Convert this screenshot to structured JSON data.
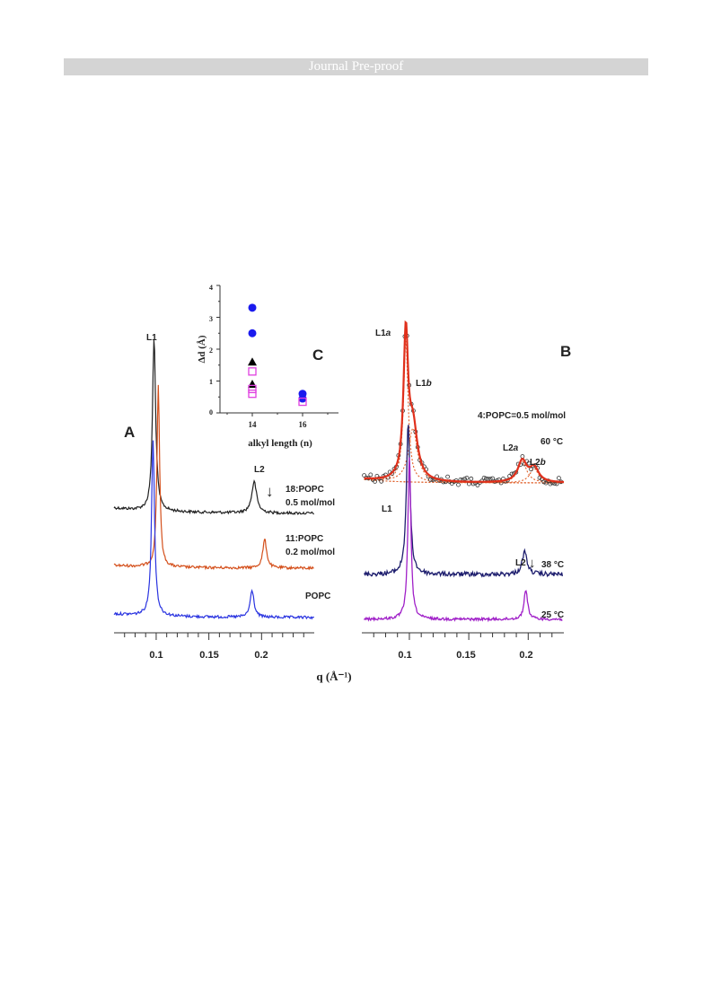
{
  "page": {
    "banner_text": "Journal Pre-proof"
  },
  "chart_data": [
    {
      "panel": "A",
      "type": "line",
      "xlabel": "q (Å⁻¹)",
      "xlim": [
        0.06,
        0.25
      ],
      "xticks": [
        0.1,
        0.15,
        0.2
      ],
      "series": [
        {
          "name": "18:POPC 0.5 mol/mol",
          "color": "#222222",
          "peaks": [
            {
              "label": "L1",
              "q": 0.098
            },
            {
              "label": "L2",
              "q": 0.193
            }
          ],
          "arrow_label": "↓"
        },
        {
          "name": "11:POPC 0.2 mol/mol",
          "color": "#d4501c",
          "peaks": [
            {
              "q": 0.102
            },
            {
              "q": 0.203
            }
          ]
        },
        {
          "name": "POPC",
          "color": "#2a34e0",
          "peaks": [
            {
              "q": 0.097
            },
            {
              "q": 0.191
            }
          ]
        }
      ]
    },
    {
      "panel": "B",
      "type": "line",
      "xlim": [
        0.06,
        0.23
      ],
      "xticks": [
        0.1,
        0.15,
        0.2
      ],
      "series": [
        {
          "name": "4:POPC=0.5 mol/mol",
          "temperature": "60 °C",
          "color": "#e0301c",
          "peaks": [
            {
              "label": "L1a",
              "q": 0.097
            },
            {
              "label": "L1b",
              "q": 0.103
            },
            {
              "label": "L2a",
              "q": 0.195
            },
            {
              "label": "L2b",
              "q": 0.205
            }
          ]
        },
        {
          "temperature": "38 °C",
          "color": "#1e1e6e",
          "peaks": [
            {
              "label": "L1",
              "q": 0.099
            },
            {
              "label": "L2",
              "q": 0.197
            }
          ],
          "arrow_label": "↓"
        },
        {
          "temperature": "25 °C",
          "color": "#a020c8",
          "peaks": [
            {
              "q": 0.1
            },
            {
              "q": 0.198
            }
          ]
        }
      ]
    },
    {
      "panel": "C",
      "type": "scatter",
      "xlabel": "alkyl length (n)",
      "ylabel": "Δd (Å)",
      "ylim": [
        0,
        4
      ],
      "xticks": [
        14,
        16
      ],
      "yticks": [
        0,
        1,
        2,
        3,
        4
      ],
      "series": [
        {
          "marker": "circle",
          "color": "#1a1aee",
          "points": [
            [
              14,
              3.3
            ],
            [
              14,
              2.5
            ],
            [
              16,
              0.6
            ],
            [
              16,
              0.45
            ]
          ]
        },
        {
          "marker": "triangle",
          "color": "#000000",
          "points": [
            [
              14,
              1.6
            ],
            [
              14,
              0.9
            ]
          ]
        },
        {
          "marker": "open-square",
          "color": "#e040e0",
          "points": [
            [
              14,
              1.3
            ],
            [
              14,
              0.75
            ],
            [
              14,
              0.6
            ],
            [
              16,
              0.35
            ]
          ]
        }
      ]
    }
  ],
  "labels": {
    "panel_a": "A",
    "panel_b": "B",
    "panel_c": "C",
    "a_l1": "L1",
    "a_l2": "L2",
    "a_arrow": "↓",
    "a_s1_line1": "18:POPC",
    "a_s1_line2": "0.5 mol/mol",
    "a_s2_line1": "11:POPC",
    "a_s2_line2": "0.2 mol/mol",
    "a_s3": "POPC",
    "b_l1a": "L1",
    "b_l1a_sub": "a",
    "b_l1b": "L1",
    "b_l1b_sub": "b",
    "b_l2a": "L2",
    "b_l2a_sub": "a",
    "b_l2b": "L2",
    "b_l2b_sub": "b",
    "b_series": "4:POPC=0.5 mol/mol",
    "b_t60": "60 °C",
    "b_t38": "38 °C",
    "b_t25": "25 °C",
    "b_l1": "L1",
    "b_l2": "L2",
    "b_arrow": "↓",
    "x_tick_1": "0.1",
    "x_tick_2": "0.15",
    "x_tick_3": "0.2",
    "xlabel": "q (Å⁻¹)",
    "c_ylabel": "Δd (Å)",
    "c_xlabel": "alkyl length (n)",
    "c_y0": "0",
    "c_y1": "1",
    "c_y2": "2",
    "c_y3": "3",
    "c_y4": "4",
    "c_x14": "14",
    "c_x16": "16"
  }
}
